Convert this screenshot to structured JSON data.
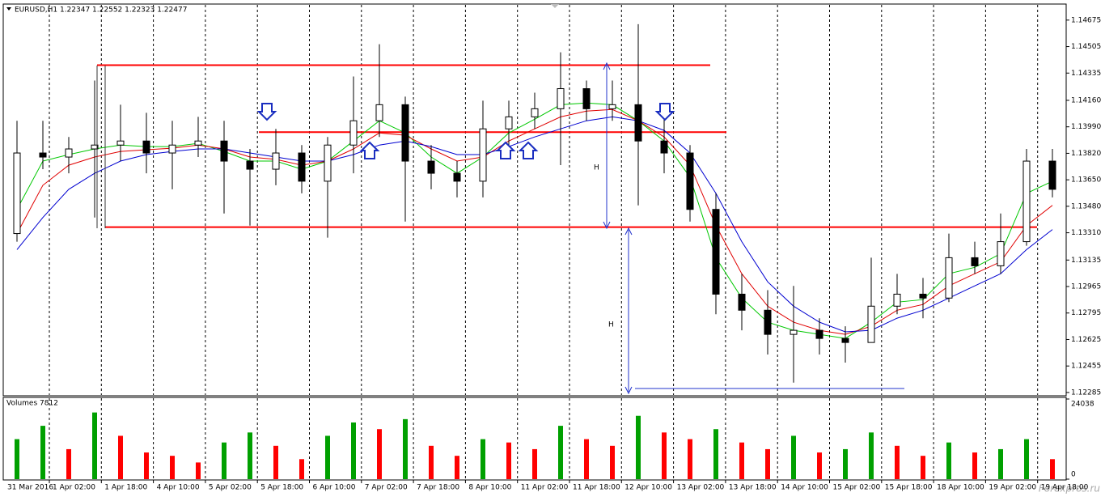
{
  "chart_data": {
    "type": "candlestick",
    "header": "EURUSD,H1  1.22347 1.22552 1.22323 1.22477",
    "candles": [
      [
        1.13305,
        1.14029,
        1.13253,
        1.13822
      ],
      [
        1.13822,
        1.14029,
        1.13718,
        1.13796
      ],
      [
        1.13796,
        1.13925,
        1.13692,
        1.13848
      ],
      [
        1.13848,
        1.14287,
        1.13408,
        1.13873
      ],
      [
        1.13873,
        1.14132,
        1.1377,
        1.13899
      ],
      [
        1.13899,
        1.1408,
        1.13692,
        1.13822
      ],
      [
        1.13822,
        1.14029,
        1.13589,
        1.13873
      ],
      [
        1.13873,
        1.14054,
        1.13796,
        1.13899
      ],
      [
        1.13899,
        1.14029,
        1.13434,
        1.1377
      ],
      [
        1.1377,
        1.13848,
        1.13356,
        1.13718
      ],
      [
        1.13718,
        1.13977,
        1.13615,
        1.13822
      ],
      [
        1.13822,
        1.13873,
        1.13563,
        1.13641
      ],
      [
        1.13641,
        1.13925,
        1.13279,
        1.13873
      ],
      [
        1.13873,
        1.14313,
        1.13692,
        1.14029
      ],
      [
        1.14029,
        1.1452,
        1.13925,
        1.14132
      ],
      [
        1.14132,
        1.14184,
        1.13382,
        1.1377
      ],
      [
        1.1377,
        1.13873,
        1.13589,
        1.13692
      ],
      [
        1.13692,
        1.1377,
        1.13537,
        1.13641
      ],
      [
        1.13641,
        1.14158,
        1.13537,
        1.13977
      ],
      [
        1.13977,
        1.14158,
        1.13873,
        1.14054
      ],
      [
        1.14054,
        1.14209,
        1.13977,
        1.14106
      ],
      [
        1.14106,
        1.14468,
        1.13744,
        1.14235
      ],
      [
        1.14235,
        1.14287,
        1.14029,
        1.14106
      ],
      [
        1.14106,
        1.14287,
        1.14029,
        1.14132
      ],
      [
        1.14132,
        1.14649,
        1.13486,
        1.13899
      ],
      [
        1.13899,
        1.14132,
        1.13692,
        1.13822
      ],
      [
        1.13822,
        1.13873,
        1.13382,
        1.1346
      ],
      [
        1.1346,
        1.13563,
        1.12787,
        1.12916
      ],
      [
        1.12916,
        1.13046,
        1.12684,
        1.12813
      ],
      [
        1.12813,
        1.12942,
        1.12529,
        1.12658
      ],
      [
        1.12658,
        1.12969,
        1.12348,
        1.12684
      ],
      [
        1.12684,
        1.12761,
        1.12529,
        1.12632
      ],
      [
        1.12632,
        1.1271,
        1.12477,
        1.12606
      ],
      [
        1.12606,
        1.1315,
        1.12606,
        1.12839
      ],
      [
        1.12839,
        1.13046,
        1.12787,
        1.12916
      ],
      [
        1.12916,
        1.1302,
        1.12761,
        1.12891
      ],
      [
        1.12891,
        1.13305,
        1.12865,
        1.1315
      ],
      [
        1.1315,
        1.13253,
        1.13046,
        1.13098
      ],
      [
        1.13098,
        1.13434,
        1.13046,
        1.13253
      ],
      [
        1.13253,
        1.13848,
        1.13227,
        1.1377
      ],
      [
        1.1377,
        1.13848,
        1.13537,
        1.13589
      ]
    ],
    "candle_colors": {
      "up": "#ffffff",
      "down": "#000000",
      "outline": "#000000"
    },
    "series": [
      {
        "color": "#00c800",
        "values": [
          1.1346,
          1.1377,
          1.13812,
          1.13848,
          1.13873,
          1.13863,
          1.13863,
          1.13884,
          1.13832,
          1.1377,
          1.1377,
          1.13718,
          1.1377,
          1.13899,
          1.14029,
          1.13951,
          1.13796,
          1.13692,
          1.13796,
          1.13951,
          1.14039,
          1.14132,
          1.14143,
          1.14132,
          1.14029,
          1.13899,
          1.13667,
          1.1315,
          1.12891,
          1.12736,
          1.12684,
          1.12658,
          1.12632,
          1.12736,
          1.12865,
          1.12881,
          1.13047,
          1.13088,
          1.13176,
          1.13563,
          1.13641
        ]
      },
      {
        "color": "#e00000",
        "values": [
          1.13305,
          1.13615,
          1.13744,
          1.13796,
          1.13832,
          1.13843,
          1.13853,
          1.13873,
          1.13848,
          1.13796,
          1.13781,
          1.13744,
          1.1377,
          1.13848,
          1.13951,
          1.13936,
          1.13848,
          1.1377,
          1.13796,
          1.13899,
          1.13977,
          1.14054,
          1.14091,
          1.14101,
          1.14029,
          1.13925,
          1.13744,
          1.13356,
          1.13047,
          1.12839,
          1.12736,
          1.12684,
          1.12658,
          1.1271,
          1.12813,
          1.1285,
          1.12969,
          1.13047,
          1.13124,
          1.13356,
          1.13486
        ]
      },
      {
        "color": "#0000d0",
        "values": [
          1.13202,
          1.13408,
          1.13589,
          1.13692,
          1.1377,
          1.13812,
          1.13832,
          1.13848,
          1.13848,
          1.13822,
          1.13796,
          1.1377,
          1.1377,
          1.13812,
          1.13873,
          1.13899,
          1.13863,
          1.13812,
          1.13812,
          1.13863,
          1.13925,
          1.13977,
          1.14029,
          1.14054,
          1.14029,
          1.13967,
          1.13822,
          1.13563,
          1.13253,
          1.12995,
          1.12839,
          1.12736,
          1.12674,
          1.12684,
          1.12762,
          1.12813,
          1.12891,
          1.12969,
          1.13047,
          1.13202,
          1.13331
        ]
      }
    ],
    "levels": {
      "color": "#ff0000",
      "values": [
        1.14386,
        1.13956,
        1.13346
      ]
    },
    "ylim": [
      1.12269,
      1.14778
    ],
    "yticks": [
      1.14675,
      1.14505,
      1.14335,
      {
        "value": 1.1416,
        "label": "1.14160"
      },
      {
        "value": 1.1399,
        "label": "1.13990"
      },
      {
        "value": 1.1382,
        "label": "1.13820"
      },
      {
        "value": 1.1365,
        "label": "1.13650"
      },
      {
        "value": 1.1348,
        "label": "1.13480"
      },
      {
        "value": 1.1331,
        "label": "1.13310"
      },
      1.13135,
      1.12965,
      1.12795,
      1.12625,
      1.12455,
      1.12285
    ],
    "xlabels": [
      "31 Mar 2016",
      "1 Apr 02:00",
      "1 Apr 18:00",
      "4 Apr 10:00",
      "5 Apr 02:00",
      "5 Apr 18:00",
      "6 Apr 10:00",
      "7 Apr 02:00",
      "7 Apr 18:00",
      "8 Apr 10:00",
      "11 Apr 02:00",
      "11 Apr 18:00",
      "12 Apr 10:00",
      "13 Apr 02:00",
      "13 Apr 18:00",
      "14 Apr 10:00",
      "15 Apr 02:00",
      "15 Apr 18:00",
      "18 Apr 10:00",
      "19 Apr 02:00",
      "19 Apr 18:00"
    ],
    "grid": true,
    "annotations": [
      "H",
      "H"
    ],
    "volume": {
      "title": "Volumes 7812",
      "up_color": "#00a000",
      "down_color": "#ff0000",
      "values": [
        12000,
        16000,
        9000,
        20000,
        13000,
        8000,
        7000,
        5000,
        11000,
        14000,
        10000,
        6000,
        13000,
        17000,
        15000,
        18000,
        10000,
        7000,
        12000,
        11000,
        9000,
        16000,
        12000,
        10000,
        19000,
        14000,
        12000,
        15000,
        11000,
        9000,
        13000,
        8000,
        9000,
        14000,
        10000,
        7000,
        11000,
        8000,
        9000,
        12000,
        6000
      ],
      "ylim": [
        0,
        24038
      ],
      "yticks": [
        0,
        24038
      ]
    },
    "watermark": "Forexpros.ru"
  }
}
